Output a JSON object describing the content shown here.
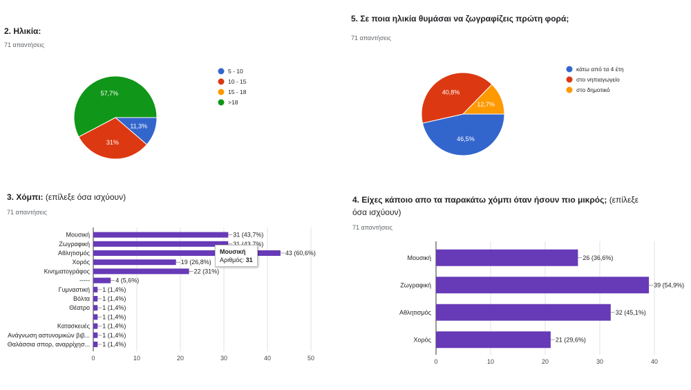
{
  "q2": {
    "title": "2. Ηλικία:",
    "count": "71 απαντήσεις",
    "chart_data": {
      "type": "pie",
      "slices": [
        {
          "label": "5 - 10",
          "value": 11.3,
          "value_label": "11,3%",
          "color": "#3366cc"
        },
        {
          "label": "10 - 15",
          "value": 31.0,
          "value_label": "31%",
          "color": "#dc3912"
        },
        {
          "label": "15 - 18",
          "value": 0.0,
          "value_label": "",
          "color": "#ff9900"
        },
        {
          "label": ">18",
          "value": 57.7,
          "value_label": "57,7%",
          "color": "#109618"
        }
      ],
      "legend_position": "right"
    }
  },
  "q5": {
    "title": "5. Σε ποια ηλικία θυμάσαι να ζωγραφίζεις πρώτη φορά;",
    "count": "71 απαντήσεις",
    "chart_data": {
      "type": "pie",
      "slices": [
        {
          "label": "κάτω από τα 4 έτη",
          "value": 46.5,
          "value_label": "46,5%",
          "color": "#3366cc"
        },
        {
          "label": "στο νηπιαγωγείο",
          "value": 40.8,
          "value_label": "40,8%",
          "color": "#dc3912"
        },
        {
          "label": "στο δημοτικό",
          "value": 12.7,
          "value_label": "12,7%",
          "color": "#ff9900"
        }
      ],
      "legend_position": "right"
    }
  },
  "q3": {
    "title": "3. Χόμπι:",
    "hint": "(επίλεξε όσα ισχύουν)",
    "count": "71 απαντήσεις",
    "tooltip": {
      "title": "Μουσική",
      "label": "Αριθμός:",
      "value": "31"
    },
    "chart_data": {
      "type": "bar",
      "orientation": "horizontal",
      "color": "#673ab7",
      "categories": [
        "Μουσική",
        "Ζωγραφική",
        "Αθλητισμός",
        "Χορός",
        "Κινηματογράφος",
        "-----",
        "Γυμναστική",
        "Βόλτα",
        "Θέατρο",
        "",
        "Κατασκευές",
        "Ανάγνωση αστυνομικών βιβ...",
        "Θαλάσσια σπορ, αναρρίχησ..."
      ],
      "values": [
        31,
        31,
        43,
        19,
        22,
        4,
        1,
        1,
        1,
        1,
        1,
        1,
        1
      ],
      "data_labels": [
        "31 (43,7%)",
        "31 (43,7%)",
        "43 (60,6%)",
        "19 (26,8%)",
        "22 (31%)",
        "4 (5,6%)",
        "1 (1,4%)",
        "1 (1,4%)",
        "1 (1,4%)",
        "1 (1,4%)",
        "1 (1,4%)",
        "1 (1,4%)",
        "1 (1,4%)"
      ],
      "xlim": [
        0,
        50
      ],
      "xticks": [
        "0",
        "10",
        "20",
        "30",
        "40",
        "50"
      ],
      "grid": true
    }
  },
  "q4": {
    "title": "4. Είχες κάποιο απο τα παρακάτω χόμπι όταν ήσουν πιο μικρός;",
    "hint": "(επίλεξε όσα ισχύουν)",
    "count": "71 απαντήσεις",
    "chart_data": {
      "type": "bar",
      "orientation": "horizontal",
      "color": "#673ab7",
      "categories": [
        "Μουσική",
        "Ζωγραφική",
        "Αθλητισμός",
        "Χορός"
      ],
      "values": [
        26,
        39,
        32,
        21
      ],
      "data_labels": [
        "26 (36,6%)",
        "39 (54,9%)",
        "32 (45,1%)",
        "21 (29,6%)"
      ],
      "xlim": [
        0,
        40
      ],
      "xticks": [
        "0",
        "10",
        "20",
        "30",
        "40"
      ],
      "grid": true
    }
  }
}
